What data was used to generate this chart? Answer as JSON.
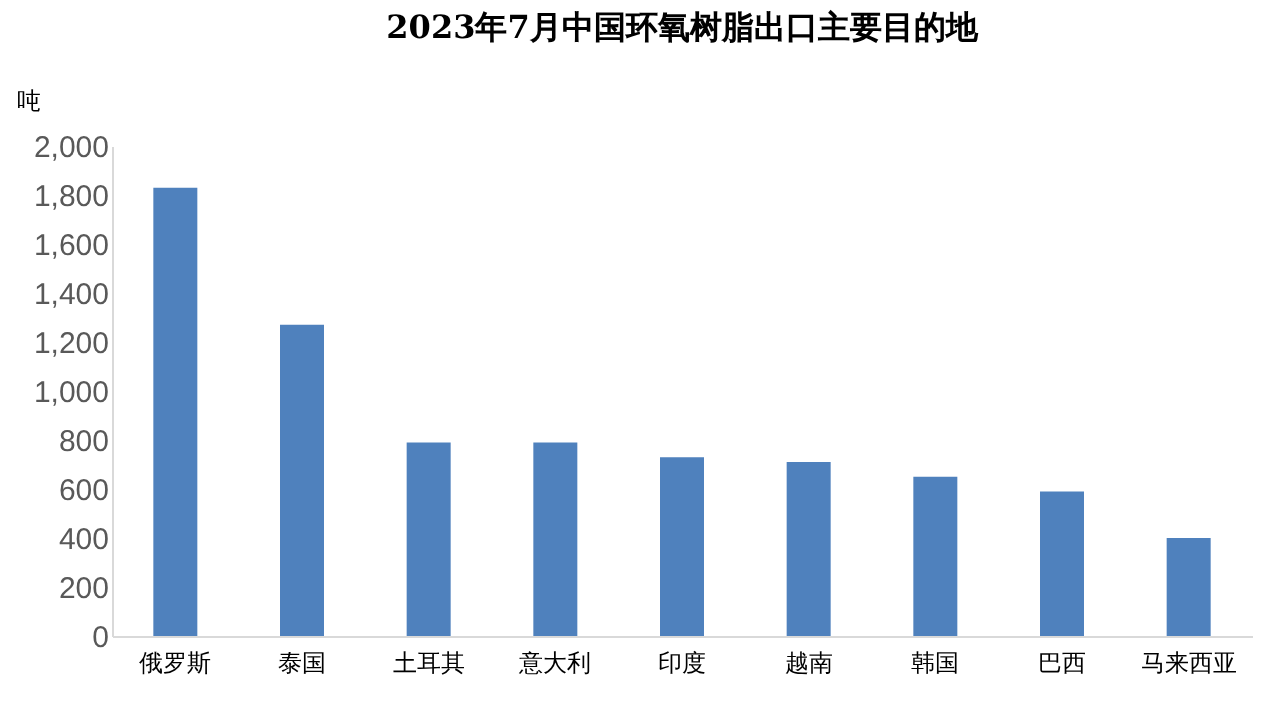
{
  "chart_data": {
    "type": "bar",
    "title": "2023年7月中国环氧树脂出口主要目的地",
    "ylabel": "吨",
    "categories": [
      "俄罗斯",
      "泰国",
      "土耳其",
      "意大利",
      "印度",
      "越南",
      "韩国",
      "巴西",
      "马来西亚"
    ],
    "values": [
      1830,
      1270,
      790,
      790,
      730,
      710,
      650,
      590,
      400
    ],
    "color": "#4f81bd",
    "ylim": [
      0,
      2000
    ],
    "yticks": [
      0,
      200,
      400,
      600,
      800,
      {
        "value": 1000,
        "label": "1,000"
      },
      {
        "value": 1200,
        "label": "1,200"
      },
      {
        "value": 1400,
        "label": "1,400"
      },
      {
        "value": 1600,
        "label": "1,600"
      },
      {
        "value": 1800,
        "label": "1,800"
      },
      {
        "value": 2000,
        "label": "2,000"
      }
    ],
    "grid": false
  }
}
